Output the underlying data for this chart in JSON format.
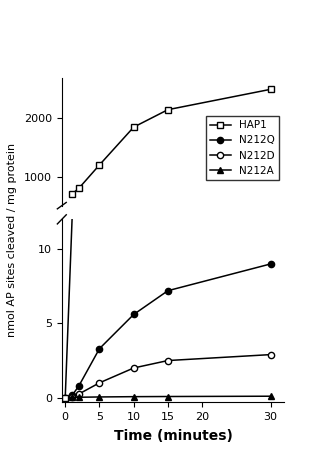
{
  "time_points": [
    0,
    1,
    2,
    5,
    10,
    15,
    30
  ],
  "HAP1_upper": [
    700,
    800,
    1200,
    1850,
    2150,
    2500
  ],
  "HAP1_upper_t": [
    1,
    2,
    5,
    10,
    15,
    30
  ],
  "HAP1_lower_t": [
    0,
    1
  ],
  "HAP1_lower": [
    0,
    12
  ],
  "N212Q": [
    0,
    0.15,
    0.8,
    3.3,
    5.6,
    7.2,
    9.0
  ],
  "N212D": [
    0,
    0.05,
    0.25,
    1.0,
    2.0,
    2.5,
    2.9
  ],
  "N212A": [
    0,
    0.02,
    0.03,
    0.05,
    0.07,
    0.08,
    0.1
  ],
  "xlabel": "Time (minutes)",
  "ylabel": "nmol AP sites cleaved / mg protein",
  "upper_ylim": [
    500,
    2700
  ],
  "lower_ylim": [
    -0.3,
    12
  ],
  "upper_yticks": [
    1000,
    2000
  ],
  "lower_yticks": [
    0,
    5,
    10
  ],
  "xticks": [
    0,
    5,
    10,
    15,
    20,
    30
  ],
  "xlim": [
    -0.5,
    32
  ],
  "background_color": "#ffffff",
  "legend_entries": [
    "HAP1",
    "N212Q",
    "N212D",
    "N212A"
  ]
}
